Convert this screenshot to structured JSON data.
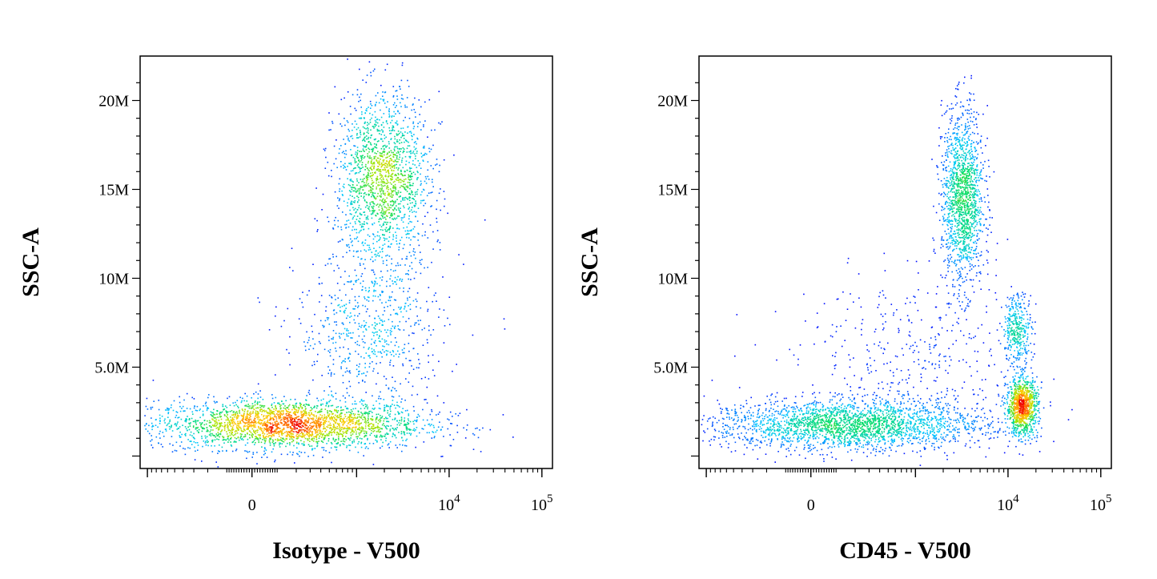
{
  "chart_data": [
    {
      "type": "scatter",
      "subtype": "flow-cytometry-density-dot-plot",
      "title": "",
      "xlabel": "Isotype - V500",
      "ylabel": "SSC-A",
      "x_scale": "biexponential",
      "x_ticks": [
        {
          "value": 0,
          "label": "0"
        },
        {
          "value": 10000,
          "label": "10",
          "sup": "4"
        },
        {
          "value": 100000,
          "label": "10",
          "sup": "5"
        }
      ],
      "y_ticks": [
        {
          "value": 5000000,
          "label": "5.0M"
        },
        {
          "value": 10000000,
          "label": "10M"
        },
        {
          "value": 15000000,
          "label": "15M"
        },
        {
          "value": 20000000,
          "label": "20M"
        }
      ],
      "ylim": [
        0,
        22000000
      ],
      "grid": false,
      "populations": [
        {
          "x_center": 150,
          "y_center": 1800000,
          "x_spread": 500,
          "y_spread": 700000,
          "density": "high",
          "events": 2600
        },
        {
          "x_center": 1900,
          "y_center": 15500000,
          "x_spread": 1100,
          "y_spread": 2400000,
          "density": "medium",
          "events": 1700
        },
        {
          "x_center": 1400,
          "y_center": 7000000,
          "x_spread": 1100,
          "y_spread": 2200000,
          "density": "low",
          "events": 650
        }
      ]
    },
    {
      "type": "scatter",
      "subtype": "flow-cytometry-density-dot-plot",
      "title": "",
      "xlabel": "CD45 - V500",
      "ylabel": "SSC-A",
      "x_scale": "biexponential",
      "x_ticks": [
        {
          "value": 0,
          "label": "0"
        },
        {
          "value": 10000,
          "label": "10",
          "sup": "4"
        },
        {
          "value": 100000,
          "label": "10",
          "sup": "5"
        }
      ],
      "y_ticks": [
        {
          "value": 5000000,
          "label": "5.0M"
        },
        {
          "value": 10000000,
          "label": "10M"
        },
        {
          "value": 15000000,
          "label": "15M"
        },
        {
          "value": 20000000,
          "label": "20M"
        }
      ],
      "ylim": [
        0,
        22000000
      ],
      "grid": false,
      "populations": [
        {
          "x_center": 150,
          "y_center": 1800000,
          "x_spread": 500,
          "y_spread": 700000,
          "density": "high",
          "events": 2400
        },
        {
          "x_center": 3200,
          "y_center": 14500000,
          "x_spread": 900,
          "y_spread": 2500000,
          "density": "medium",
          "events": 1500
        },
        {
          "x_center": 12500,
          "y_center": 7200000,
          "x_spread": 2500,
          "y_spread": 1000000,
          "density": "low",
          "events": 350
        },
        {
          "x_center": 14000,
          "y_center": 2800000,
          "x_spread": 3000,
          "y_spread": 800000,
          "density": "high",
          "events": 1000
        },
        {
          "x_center": 900,
          "y_center": 5000000,
          "x_spread": 900,
          "y_spread": 2500000,
          "density": "low",
          "events": 450
        }
      ]
    }
  ]
}
